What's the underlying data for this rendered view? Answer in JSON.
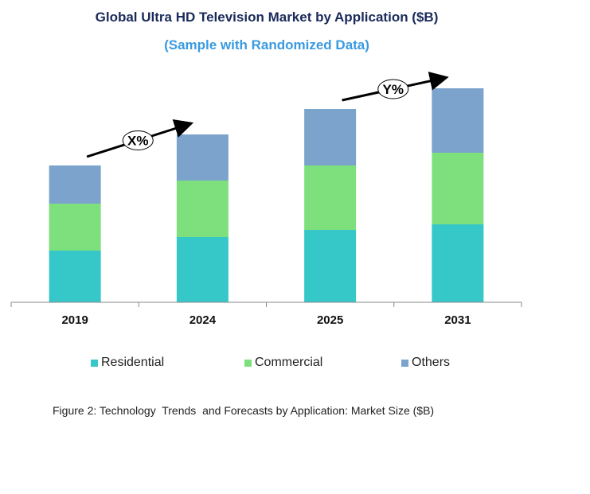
{
  "chart_data": {
    "type": "bar",
    "stacked": true,
    "title": "Global Ultra HD Television Market by Application ($B)",
    "subtitle": "(Sample with Randomized Data)",
    "categories": [
      "2019",
      "2024",
      "2025",
      "2031"
    ],
    "series": [
      {
        "name": "Residential",
        "color": "#36C8C8",
        "values": [
          65,
          82,
          91,
          98
        ]
      },
      {
        "name": "Commercial",
        "color": "#7DE07D",
        "values": [
          59,
          71,
          81,
          90
        ]
      },
      {
        "name": "Others",
        "color": "#7BA3CB",
        "values": [
          48,
          58,
          71,
          81
        ]
      }
    ],
    "ylim": [
      0,
      300
    ],
    "y_axis_shown": false,
    "grid": false,
    "legend_position": "bottom",
    "annotations": [
      {
        "label": "X%",
        "from_category": "2019",
        "to_category": "2024"
      },
      {
        "label": "Y%",
        "from_category": "2025",
        "to_category": "2031"
      }
    ],
    "caption": "Figure 2: Technology  Trends  and Forecasts by Application: Market Size ($B)"
  }
}
